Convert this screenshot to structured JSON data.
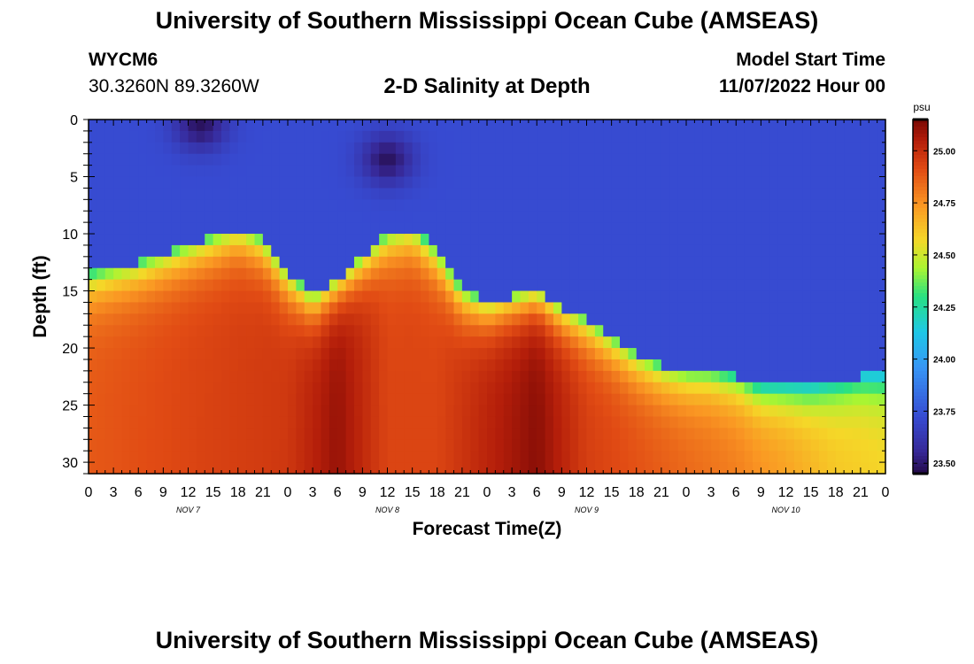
{
  "header": {
    "title": "University of Southern Mississippi Ocean Cube (AMSEAS)",
    "footer_title": "University of Southern Mississippi Ocean Cube (AMSEAS)",
    "station_id": "WYCM6",
    "station_coords": "30.3260N  89.3260W",
    "subtitle": "2-D Salinity at Depth",
    "model_start_label": "Model Start Time",
    "model_start_value": "11/07/2022 Hour 00"
  },
  "chart_data": {
    "type": "heatmap",
    "title": "2-D Salinity at Depth",
    "xlabel": "Forecast Time(Z)",
    "ylabel": "Depth (ft)",
    "x_range_hours": [
      0,
      96
    ],
    "x_tick_step_hours": 3,
    "x_tick_labels": [
      "0",
      "3",
      "6",
      "9",
      "12",
      "15",
      "18",
      "21",
      "0",
      "3",
      "6",
      "9",
      "12",
      "15",
      "18",
      "21",
      "0",
      "3",
      "6",
      "9",
      "12",
      "15",
      "18",
      "21",
      "0",
      "3",
      "6",
      "9",
      "12",
      "15",
      "18",
      "21",
      "0"
    ],
    "day_labels": [
      {
        "label": "NOV 7",
        "hour": 12
      },
      {
        "label": "NOV 8",
        "hour": 36
      },
      {
        "label": "NOV 9",
        "hour": 60
      },
      {
        "label": "NOV 10",
        "hour": 84
      }
    ],
    "y_range_ft": [
      0,
      31
    ],
    "y_ticks": [
      0,
      5,
      10,
      15,
      20,
      25,
      30
    ],
    "colorbar": {
      "unit": "psu",
      "min": 23.45,
      "max": 25.15,
      "ticks": [
        "25.00",
        "24.75",
        "24.50",
        "24.25",
        "24.00",
        "23.75",
        "23.50"
      ],
      "tick_values": [
        25.0,
        24.75,
        24.5,
        24.25,
        24.0,
        23.75,
        23.5
      ]
    },
    "upper_layer_salinity_psu": 23.72,
    "surface_minima": [
      {
        "hour": 13.5,
        "depth_ft": 0.5,
        "psu": 23.48
      },
      {
        "hour": 36.0,
        "depth_ft": 3.5,
        "psu": 23.48
      }
    ],
    "halocline_depth_ft": [
      [
        0,
        13.5
      ],
      [
        6,
        12.5
      ],
      [
        12,
        11
      ],
      [
        18,
        9.5
      ],
      [
        21,
        10.5
      ],
      [
        24,
        13.5
      ],
      [
        27,
        15.5
      ],
      [
        30,
        14
      ],
      [
        33,
        12
      ],
      [
        36,
        10
      ],
      [
        39,
        9.5
      ],
      [
        42,
        11.5
      ],
      [
        45,
        15
      ],
      [
        48,
        16
      ],
      [
        51,
        15.5
      ],
      [
        54,
        15
      ],
      [
        57,
        16.5
      ],
      [
        60,
        17.5
      ],
      [
        63,
        19
      ],
      [
        66,
        20.5
      ],
      [
        69,
        21.5
      ],
      [
        72,
        22
      ],
      [
        75,
        22
      ],
      [
        78,
        22.5
      ],
      [
        81,
        23.5
      ],
      [
        84,
        23.5
      ],
      [
        87,
        23.5
      ],
      [
        90,
        23
      ],
      [
        93,
        22.5
      ],
      [
        96,
        22.5
      ]
    ],
    "bottom_salinity_psu": [
      [
        0,
        24.88
      ],
      [
        12,
        24.93
      ],
      [
        24,
        24.97
      ],
      [
        30,
        25.1
      ],
      [
        36,
        24.93
      ],
      [
        42,
        24.93
      ],
      [
        48,
        25.03
      ],
      [
        54,
        25.12
      ],
      [
        60,
        24.95
      ],
      [
        66,
        24.9
      ],
      [
        72,
        24.85
      ],
      [
        78,
        24.8
      ],
      [
        84,
        24.72
      ],
      [
        90,
        24.62
      ],
      [
        96,
        24.58
      ]
    ]
  }
}
